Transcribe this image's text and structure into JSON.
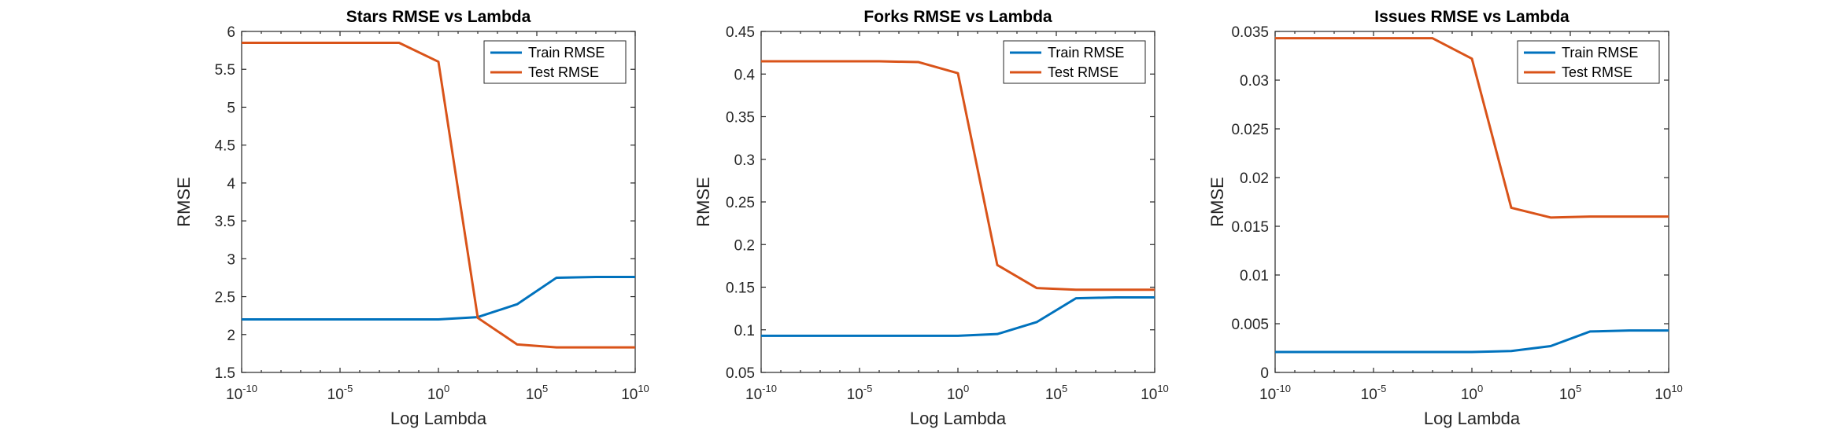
{
  "chart_data": [
    {
      "type": "line",
      "title": "Stars RMSE vs Lambda",
      "xlabel": "Log Lambda",
      "ylabel": "RMSE",
      "xscale": "log",
      "xlim": [
        1e-10,
        10000000000.0
      ],
      "ylim": [
        1.5,
        6
      ],
      "xticks": [
        {
          "base": "10",
          "exp": "-10"
        },
        {
          "base": "10",
          "exp": "-5"
        },
        {
          "base": "10",
          "exp": "0"
        },
        {
          "base": "10",
          "exp": "5"
        },
        {
          "base": "10",
          "exp": "10"
        }
      ],
      "yticks": [
        "1.5",
        "2",
        "2.5",
        "3",
        "3.5",
        "4",
        "4.5",
        "5",
        "5.5",
        "6"
      ],
      "legend_position": "top-right",
      "x": [
        1e-10,
        1e-08,
        1e-06,
        0.0001,
        0.01,
        1,
        100,
        10000,
        1000000,
        100000000,
        10000000000
      ],
      "series": [
        {
          "name": "Train RMSE",
          "color": "#0072BD",
          "values": [
            2.2,
            2.2,
            2.2,
            2.2,
            2.2,
            2.2,
            2.23,
            2.4,
            2.75,
            2.76,
            2.76
          ]
        },
        {
          "name": "Test RMSE",
          "color": "#D95319",
          "values": [
            5.85,
            5.85,
            5.85,
            5.85,
            5.85,
            5.6,
            2.22,
            1.87,
            1.83,
            1.83,
            1.83
          ]
        }
      ]
    },
    {
      "type": "line",
      "title": "Forks RMSE vs Lambda",
      "xlabel": "Log Lambda",
      "ylabel": "RMSE",
      "xscale": "log",
      "xlim": [
        1e-10,
        10000000000.0
      ],
      "ylim": [
        0.05,
        0.45
      ],
      "xticks": [
        {
          "base": "10",
          "exp": "-10"
        },
        {
          "base": "10",
          "exp": "-5"
        },
        {
          "base": "10",
          "exp": "0"
        },
        {
          "base": "10",
          "exp": "5"
        },
        {
          "base": "10",
          "exp": "10"
        }
      ],
      "yticks": [
        "0.05",
        "0.1",
        "0.15",
        "0.2",
        "0.25",
        "0.3",
        "0.35",
        "0.4",
        "0.45"
      ],
      "legend_position": "top-right",
      "x": [
        1e-10,
        1e-08,
        1e-06,
        0.0001,
        0.01,
        1,
        100,
        10000,
        1000000,
        100000000,
        10000000000
      ],
      "series": [
        {
          "name": "Train RMSE",
          "color": "#0072BD",
          "values": [
            0.093,
            0.093,
            0.093,
            0.093,
            0.093,
            0.093,
            0.095,
            0.109,
            0.137,
            0.138,
            0.138
          ]
        },
        {
          "name": "Test RMSE",
          "color": "#D95319",
          "values": [
            0.415,
            0.415,
            0.415,
            0.415,
            0.414,
            0.401,
            0.176,
            0.149,
            0.147,
            0.147,
            0.147
          ]
        }
      ]
    },
    {
      "type": "line",
      "title": "Issues RMSE vs Lambda",
      "xlabel": "Log Lambda",
      "ylabel": "RMSE",
      "xscale": "log",
      "xlim": [
        1e-10,
        10000000000.0
      ],
      "ylim": [
        0,
        0.035
      ],
      "xticks": [
        {
          "base": "10",
          "exp": "-10"
        },
        {
          "base": "10",
          "exp": "-5"
        },
        {
          "base": "10",
          "exp": "0"
        },
        {
          "base": "10",
          "exp": "5"
        },
        {
          "base": "10",
          "exp": "10"
        }
      ],
      "yticks": [
        "0",
        "0.005",
        "0.01",
        "0.015",
        "0.02",
        "0.025",
        "0.03",
        "0.035"
      ],
      "legend_position": "top-right",
      "x": [
        1e-10,
        1e-08,
        1e-06,
        0.0001,
        0.01,
        1,
        100,
        10000,
        1000000,
        100000000,
        10000000000
      ],
      "series": [
        {
          "name": "Train RMSE",
          "color": "#0072BD",
          "values": [
            0.0021,
            0.0021,
            0.0021,
            0.0021,
            0.0021,
            0.0021,
            0.0022,
            0.0027,
            0.0042,
            0.0043,
            0.0043
          ]
        },
        {
          "name": "Test RMSE",
          "color": "#D95319",
          "values": [
            0.0343,
            0.0343,
            0.0343,
            0.0343,
            0.0343,
            0.0322,
            0.0169,
            0.0159,
            0.016,
            0.016,
            0.016
          ]
        }
      ]
    }
  ]
}
